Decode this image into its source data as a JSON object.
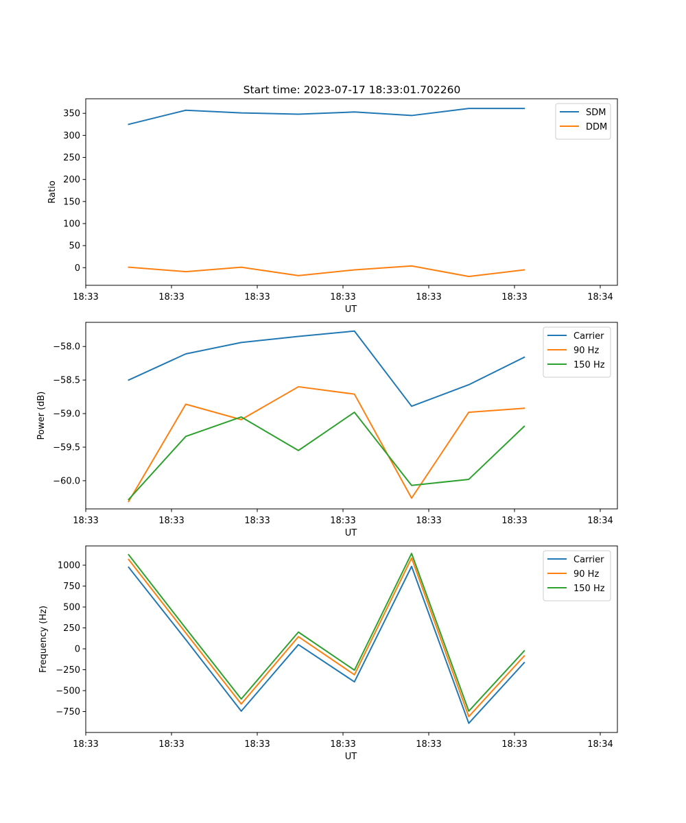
{
  "title": "Start time: 2023-07-17 18:33:01.702260",
  "colors": {
    "blue": "#1f77b4",
    "orange": "#ff7f0e",
    "green": "#2ca02c"
  },
  "chart_data": [
    {
      "type": "line",
      "name": "ratio",
      "xlabel": "UT",
      "ylabel": "Ratio",
      "legend": "top-right",
      "xlim": [
        0.0,
        9.3
      ],
      "ylim": [
        -40,
        383
      ],
      "xticks": [
        {
          "v": 0,
          "label": "18:33"
        },
        {
          "v": 1.5,
          "label": "18:33"
        },
        {
          "v": 3,
          "label": "18:33"
        },
        {
          "v": 4.5,
          "label": "18:33"
        },
        {
          "v": 6,
          "label": "18:33"
        },
        {
          "v": 7.5,
          "label": "18:33"
        },
        {
          "v": 9,
          "label": "18:34"
        }
      ],
      "yticks": [
        {
          "v": 350,
          "label": "350"
        },
        {
          "v": 300,
          "label": "300"
        },
        {
          "v": 250,
          "label": "250"
        },
        {
          "v": 200,
          "label": "200"
        },
        {
          "v": 150,
          "label": "150"
        },
        {
          "v": 100,
          "label": "100"
        },
        {
          "v": 50,
          "label": "50"
        },
        {
          "v": 0,
          "label": "0"
        }
      ],
      "x": [
        0.75,
        1.75,
        2.72,
        3.72,
        4.7,
        5.7,
        6.7,
        7.67
      ],
      "series": [
        {
          "name": "SDM",
          "color": "#1f77b4",
          "values": [
            325,
            357,
            351,
            348,
            353,
            345,
            361,
            361
          ]
        },
        {
          "name": "DDM",
          "color": "#ff7f0e",
          "values": [
            1,
            -9,
            1,
            -18,
            -5,
            4,
            -20,
            -5
          ]
        }
      ]
    },
    {
      "type": "line",
      "name": "power",
      "xlabel": "UT",
      "ylabel": "Power (dB)",
      "legend": "top-right",
      "xlim": [
        0.0,
        9.3
      ],
      "ylim": [
        -60.42,
        -57.64
      ],
      "xticks": [
        {
          "v": 0,
          "label": "18:33"
        },
        {
          "v": 1.5,
          "label": "18:33"
        },
        {
          "v": 3,
          "label": "18:33"
        },
        {
          "v": 4.5,
          "label": "18:33"
        },
        {
          "v": 6,
          "label": "18:33"
        },
        {
          "v": 7.5,
          "label": "18:33"
        },
        {
          "v": 9,
          "label": "18:34"
        }
      ],
      "yticks": [
        {
          "v": -58.0,
          "label": "−58.0"
        },
        {
          "v": -58.5,
          "label": "−58.5"
        },
        {
          "v": -59.0,
          "label": "−59.0"
        },
        {
          "v": -59.5,
          "label": "−59.5"
        },
        {
          "v": -60.0,
          "label": "−60.0"
        }
      ],
      "x": [
        0.75,
        1.75,
        2.72,
        3.72,
        4.7,
        5.7,
        6.7,
        7.67
      ],
      "series": [
        {
          "name": "Carrier",
          "color": "#1f77b4",
          "values": [
            -58.5,
            -58.11,
            -57.94,
            -57.85,
            -57.77,
            -58.89,
            -58.57,
            -58.16
          ]
        },
        {
          "name": "90 Hz",
          "color": "#ff7f0e",
          "values": [
            -60.31,
            -58.86,
            -59.09,
            -58.6,
            -58.71,
            -60.26,
            -58.98,
            -58.92
          ]
        },
        {
          "name": "150 Hz",
          "color": "#2ca02c",
          "values": [
            -60.28,
            -59.34,
            -59.05,
            -59.55,
            -58.98,
            -60.07,
            -59.98,
            -59.19
          ]
        }
      ]
    },
    {
      "type": "line",
      "name": "frequency",
      "xlabel": "UT",
      "ylabel": "Frequency (Hz)",
      "legend": "top-right",
      "xlim": [
        0.0,
        9.3
      ],
      "ylim": [
        -1000,
        1230
      ],
      "xticks": [
        {
          "v": 0,
          "label": "18:33"
        },
        {
          "v": 1.5,
          "label": "18:33"
        },
        {
          "v": 3,
          "label": "18:33"
        },
        {
          "v": 4.5,
          "label": "18:33"
        },
        {
          "v": 6,
          "label": "18:33"
        },
        {
          "v": 7.5,
          "label": "18:33"
        },
        {
          "v": 9,
          "label": "18:34"
        }
      ],
      "yticks": [
        {
          "v": 1000,
          "label": "1000"
        },
        {
          "v": 750,
          "label": "750"
        },
        {
          "v": 500,
          "label": "500"
        },
        {
          "v": 250,
          "label": "250"
        },
        {
          "v": 0,
          "label": "0"
        },
        {
          "v": -250,
          "label": "−250"
        },
        {
          "v": -500,
          "label": "−500"
        },
        {
          "v": -750,
          "label": "−750"
        }
      ],
      "x": [
        0.75,
        1.75,
        2.72,
        3.72,
        4.7,
        5.7,
        6.7,
        7.67
      ],
      "series": [
        {
          "name": "Carrier",
          "color": "#1f77b4",
          "values": [
            975,
            110,
            -745,
            50,
            -395,
            985,
            -890,
            -165
          ]
        },
        {
          "name": "90 Hz",
          "color": "#ff7f0e",
          "values": [
            1068,
            190,
            -660,
            145,
            -310,
            1085,
            -810,
            -85
          ]
        },
        {
          "name": "150 Hz",
          "color": "#2ca02c",
          "values": [
            1125,
            245,
            -600,
            200,
            -255,
            1140,
            -745,
            -25
          ]
        }
      ]
    }
  ]
}
